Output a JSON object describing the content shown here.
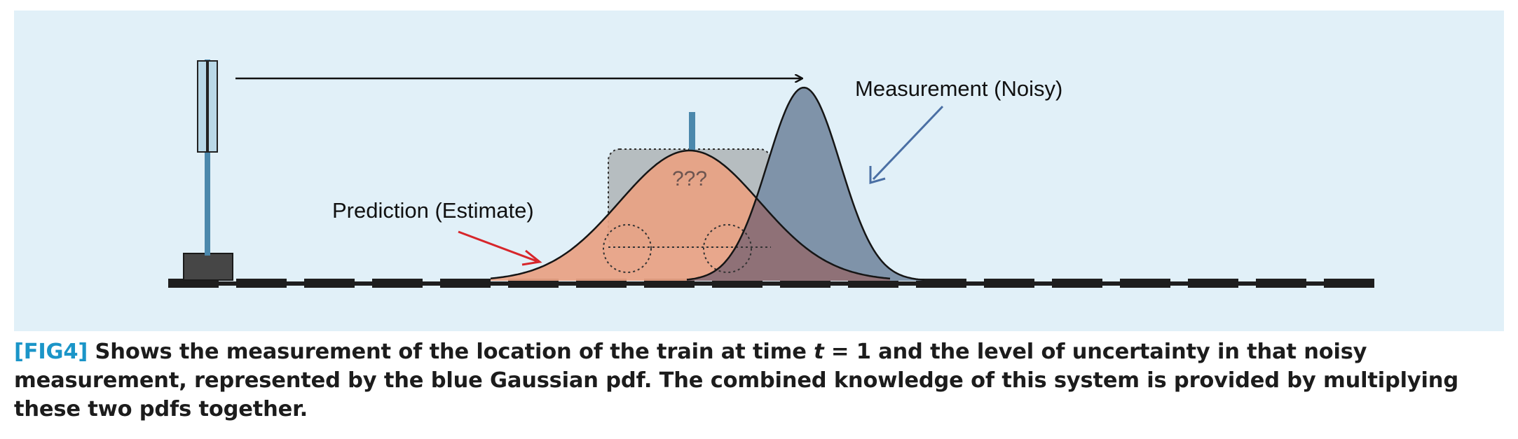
{
  "figure": {
    "labels": {
      "measurement": "Measurement (Noisy)",
      "prediction": "Prediction (Estimate)",
      "unknown": "???"
    },
    "colors": {
      "background": "#e1f0f8",
      "prediction_fill": "#e8a183",
      "measurement_fill": "#7f93a9",
      "overlap_fill": "#8f7177",
      "prediction_arrow": "#d7262b",
      "measurement_arrow": "#4a6fa4",
      "pole": "#4b88ac",
      "track": "#1e1e1e"
    }
  },
  "caption": {
    "tag": "[FIG4]",
    "part1": " Shows the measurement of the location of the train at time ",
    "var": "t",
    "part2": " = 1 and the level of uncertainty in that noisy measurement, represented by the blue Gaussian pdf. The combined knowledge of this system is provided by multiplying these two pdfs together."
  }
}
